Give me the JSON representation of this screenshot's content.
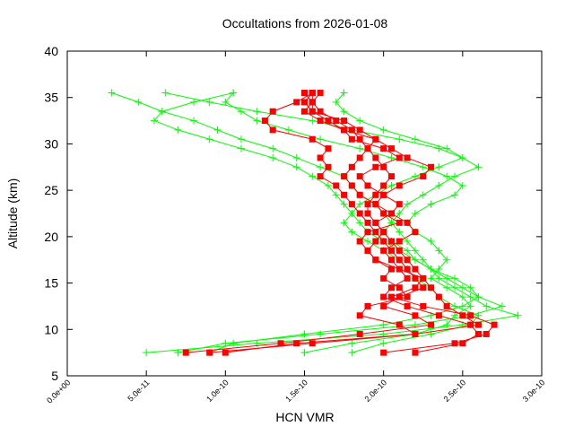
{
  "chart_data": {
    "type": "line",
    "title": "Occultations from 2026-01-08",
    "xlabel": "HCN VMR",
    "ylabel": "Altitude (km)",
    "xlim": [
      0,
      3e-10
    ],
    "ylim": [
      5,
      40
    ],
    "x_ticks": [
      "0.0e+00",
      "5.0e-11",
      "1.0e-10",
      "1.5e-10",
      "2.0e-10",
      "2.5e-10",
      "3.0e-10"
    ],
    "x_tick_values": [
      0,
      5e-11,
      1e-10,
      1.5e-10,
      2e-10,
      2.5e-10,
      3e-10
    ],
    "y_ticks": [
      "5",
      "10",
      "15",
      "20",
      "25",
      "30",
      "35",
      "40"
    ],
    "y_tick_values": [
      5,
      10,
      15,
      20,
      25,
      30,
      35,
      40
    ],
    "grid": false,
    "altitudes": [
      35.5,
      34.5,
      33.5,
      32.5,
      31.5,
      30.5,
      29.5,
      28.5,
      27.5,
      26.5,
      25.5,
      24.5,
      23.5,
      22.5,
      21.5,
      20.5,
      19.5,
      18.5,
      17.5,
      16.5,
      15.5,
      14.5,
      13.5,
      12.5,
      11.5,
      10.5,
      9.5,
      8.5,
      7.5
    ],
    "series": [
      {
        "color": "#00ff00",
        "marker": "plus",
        "values": [
          2.8e-11,
          4.5e-11,
          6e-11,
          8e-11,
          9.5e-11,
          1.1e-10,
          1.3e-10,
          1.45e-10,
          1.6e-10,
          1.75e-10,
          1.8e-10,
          1.85e-10,
          1.95e-10,
          2e-10,
          2.05e-10,
          2.1e-10,
          2.15e-10,
          2.2e-10,
          2.25e-10,
          2.3e-10,
          2.35e-10,
          2.45e-10,
          2.55e-10,
          2.65e-10,
          2.85e-10,
          2.5e-10,
          2e-10,
          1.2e-10,
          5e-11
        ]
      },
      {
        "color": "#00ff00",
        "marker": "plus",
        "values": [
          6.2e-11,
          9e-11,
          1.2e-10,
          1.55e-10,
          1.8e-10,
          2.1e-10,
          2.35e-10,
          2.5e-10,
          2.6e-10,
          2.45e-10,
          2.35e-10,
          2.25e-10,
          2.15e-10,
          2.1e-10,
          2.05e-10,
          2e-10,
          2.05e-10,
          2.15e-10,
          2.2e-10,
          2.3e-10,
          2.4e-10,
          2.5e-10,
          2.6e-10,
          2.75e-10,
          2.55e-10,
          2.2e-10,
          1.6e-10,
          1e-10,
          7e-11
        ]
      },
      {
        "color": "#00ff00",
        "marker": "plus",
        "values": [
          1.05e-10,
          8e-11,
          6e-11,
          5.5e-11,
          7e-11,
          9e-11,
          1.1e-10,
          1.3e-10,
          1.45e-10,
          1.55e-10,
          1.65e-10,
          1.7e-10,
          1.75e-10,
          1.8e-10,
          1.85e-10,
          1.9e-10,
          2e-10,
          2.1e-10,
          2.2e-10,
          2.3e-10,
          2.45e-10,
          2.55e-10,
          2.6e-10,
          2.5e-10,
          2.3e-10,
          2e-10,
          1.5e-10,
          1.05e-10,
          9e-11
        ]
      },
      {
        "color": "#00ff00",
        "marker": "plus",
        "values": [
          1.05e-10,
          1e-10,
          1.1e-10,
          1.2e-10,
          1.4e-10,
          1.6e-10,
          1.85e-10,
          2.05e-10,
          2.25e-10,
          2.4e-10,
          2.5e-10,
          2.45e-10,
          2.3e-10,
          2.2e-10,
          2.15e-10,
          2.2e-10,
          2.3e-10,
          2.35e-10,
          2.4e-10,
          2.35e-10,
          2.3e-10,
          2.4e-10,
          2.5e-10,
          2.55e-10,
          2.45e-10,
          2.4e-10,
          2.2e-10,
          1.8e-10,
          1.5e-10
        ]
      },
      {
        "color": "#00ff00",
        "marker": "plus",
        "values": [
          1.75e-10,
          1.7e-10,
          1.75e-10,
          1.85e-10,
          2e-10,
          2.2e-10,
          2.4e-10,
          2.5e-10,
          2.35e-10,
          2.2e-10,
          2.05e-10,
          1.95e-10,
          1.85e-10,
          1.8e-10,
          1.75e-10,
          1.8e-10,
          1.9e-10,
          2e-10,
          2.1e-10,
          2.15e-10,
          2.2e-10,
          2.3e-10,
          2.35e-10,
          2.45e-10,
          2.6e-10,
          2.55e-10,
          2.3e-10,
          2e-10,
          1.8e-10
        ]
      },
      {
        "color": "#ff0000",
        "marker": "square",
        "values": [
          1.55e-10,
          1.45e-10,
          1.3e-10,
          1.25e-10,
          1.3e-10,
          1.55e-10,
          1.65e-10,
          1.6e-10,
          1.65e-10,
          1.6e-10,
          1.7e-10,
          1.75e-10,
          1.8e-10,
          1.85e-10,
          1.9e-10,
          1.95e-10,
          2e-10,
          2.05e-10,
          2.1e-10,
          2.15e-10,
          2.2e-10,
          2.25e-10,
          2.1e-10,
          2e-10,
          2.2e-10,
          2.3e-10,
          1.85e-10,
          1.35e-10,
          7.5e-11
        ]
      },
      {
        "color": "#ff0000",
        "marker": "square",
        "values": [
          1.6e-10,
          1.55e-10,
          1.6e-10,
          1.7e-10,
          1.8e-10,
          1.85e-10,
          1.9e-10,
          1.95e-10,
          2e-10,
          2.05e-10,
          2e-10,
          1.95e-10,
          1.9e-10,
          1.9e-10,
          1.95e-10,
          2e-10,
          2.05e-10,
          2.1e-10,
          2.15e-10,
          2.2e-10,
          2.25e-10,
          2.3e-10,
          2.35e-10,
          2.4e-10,
          2.5e-10,
          2.6e-10,
          2.2e-10,
          1.55e-10,
          9e-11
        ]
      },
      {
        "color": "#ff0000",
        "marker": "square",
        "values": [
          1.55e-10,
          1.5e-10,
          1.55e-10,
          1.65e-10,
          1.75e-10,
          1.95e-10,
          2.05e-10,
          2.15e-10,
          2.3e-10,
          2.25e-10,
          2.1e-10,
          2e-10,
          1.95e-10,
          2.05e-10,
          2.15e-10,
          2.2e-10,
          2.1e-10,
          2e-10,
          2.05e-10,
          2.1e-10,
          2.15e-10,
          2.05e-10,
          2e-10,
          2.15e-10,
          2.35e-10,
          2.55e-10,
          2.6e-10,
          2.5e-10,
          2.2e-10
        ]
      },
      {
        "color": "#ff0000",
        "marker": "square",
        "values": [
          1.5e-10,
          1.55e-10,
          1.55e-10,
          1.75e-10,
          1.85e-10,
          1.95e-10,
          1.9e-10,
          1.85e-10,
          1.8e-10,
          1.75e-10,
          1.8e-10,
          1.85e-10,
          1.95e-10,
          2e-10,
          2.1e-10,
          1.9e-10,
          1.85e-10,
          1.9e-10,
          1.95e-10,
          2.05e-10,
          2e-10,
          2.1e-10,
          2.15e-10,
          1.9e-10,
          1.85e-10,
          2.1e-10,
          2.2e-10,
          1.45e-10,
          1e-10
        ]
      },
      {
        "color": "#ff0000",
        "marker": "square",
        "values": [
          1.55e-10,
          1.55e-10,
          1.5e-10,
          1.6e-10,
          1.75e-10,
          1.8e-10,
          2e-10,
          2.1e-10,
          1.95e-10,
          1.85e-10,
          1.9e-10,
          2e-10,
          2.1e-10,
          2.05e-10,
          1.95e-10,
          2e-10,
          1.95e-10,
          1.9e-10,
          1.95e-10,
          2.1e-10,
          2.25e-10,
          2.2e-10,
          2.05e-10,
          2.25e-10,
          2.55e-10,
          2.7e-10,
          2.65e-10,
          2.45e-10,
          2e-10
        ]
      }
    ]
  }
}
